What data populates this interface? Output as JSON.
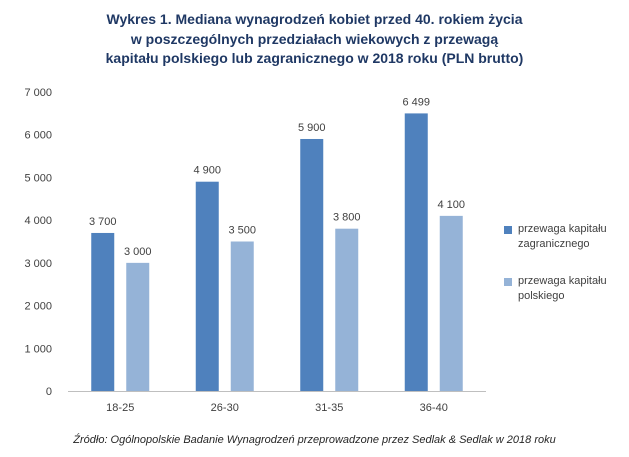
{
  "title_lines": [
    "Wykres 1. Mediana wynagrodzeń kobiet przed 40. rokiem życia",
    "w poszczególnych przedziałach wiekowych z przewagą",
    "kapitału polskiego lub zagranicznego w 2018 roku (PLN brutto)"
  ],
  "source": "Źródło: Ogólnopolskie Badanie Wynagrodzeń przeprowadzone  przez Sedlak & Sedlak w 2018 roku",
  "chart_data": {
    "type": "bar",
    "title": "Wykres 1. Mediana wynagrodzeń kobiet przed 40. rokiem życia w poszczególnych przedziałach wiekowych z przewagą kapitału polskiego lub zagranicznego w 2018 roku (PLN brutto)",
    "categories": [
      "18-25",
      "26-30",
      "31-35",
      "36-40"
    ],
    "series": [
      {
        "name": "przewaga kapitału zagranicznego",
        "name_lines": [
          "przewaga kapitału",
          "zagranicznego"
        ],
        "color": "#4f81bd",
        "values": [
          3700,
          4900,
          5900,
          6499
        ],
        "labels": [
          "3 700",
          "4 900",
          "5 900",
          "6 499"
        ]
      },
      {
        "name": "przewaga kapitału polskiego",
        "name_lines": [
          "przewaga kapitału",
          "polskiego"
        ],
        "color": "#95b3d7",
        "values": [
          3000,
          3500,
          3800,
          4100
        ],
        "labels": [
          "3 000",
          "3 500",
          "3 800",
          "4 100"
        ]
      }
    ],
    "ylim": [
      0,
      7000
    ],
    "yticks": [
      0,
      1000,
      2000,
      3000,
      4000,
      5000,
      6000,
      7000
    ],
    "ytick_labels": [
      "0",
      "1 000",
      "2 000",
      "3 000",
      "4 000",
      "5 000",
      "6 000",
      "7 000"
    ],
    "xlabel": "",
    "ylabel": "",
    "grid": false,
    "legend": "right"
  }
}
